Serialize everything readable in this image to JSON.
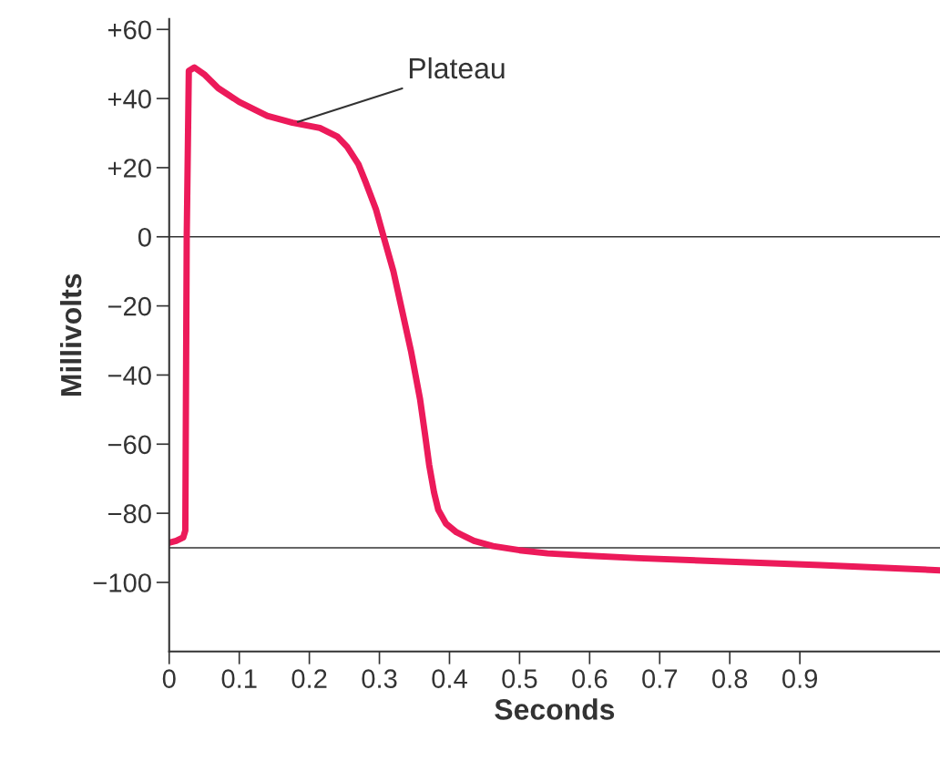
{
  "chart_data": {
    "type": "line",
    "xlabel": "Seconds",
    "ylabel": "Millivolts",
    "series": [
      {
        "color": "#ec1a5a",
        "x": [
          0,
          0.01,
          0.02,
          0.023,
          0.025,
          0.028,
          0.036,
          0.05,
          0.07,
          0.1,
          0.14,
          0.176,
          0.215,
          0.24,
          0.254,
          0.27,
          0.28,
          0.295,
          0.306,
          0.32,
          0.332,
          0.345,
          0.358,
          0.365,
          0.371,
          0.378,
          0.384,
          0.395,
          0.41,
          0.435,
          0.462,
          0.5,
          0.54,
          0.6,
          0.67,
          0.8,
          0.93,
          1.1
        ],
        "values": [
          -88.5,
          -88,
          -87,
          -85,
          0,
          48,
          49,
          47,
          43,
          39,
          35,
          33,
          31.5,
          29,
          26,
          21,
          16,
          8,
          0,
          -10,
          -21,
          -33,
          -47,
          -57,
          -66,
          -74,
          -79,
          -83,
          -85.5,
          -88,
          -89.5,
          -90.7,
          -91.6,
          -92.3,
          -93,
          -94,
          -95,
          -96.5
        ]
      }
    ],
    "annotations": [
      {
        "text": "Plateau",
        "x": 0.18,
        "y": 33
      }
    ],
    "ref_lines": [
      {
        "axis": "y",
        "value": 0,
        "color": "#333333"
      },
      {
        "axis": "y",
        "value": -90,
        "color": "#333333"
      }
    ],
    "xlim": [
      0,
      1.1
    ],
    "ylim": [
      -120,
      63
    ],
    "xticks": [
      0,
      0.1,
      0.2,
      0.3,
      0.4,
      0.5,
      0.6,
      0.7,
      0.8,
      0.9
    ],
    "yticks": [
      {
        "value": 60,
        "label": "+60"
      },
      {
        "value": 40,
        "label": "+40"
      },
      {
        "value": 20,
        "label": "+20"
      },
      0,
      {
        "value": -20,
        "label": "−20"
      },
      {
        "value": -40,
        "label": "−40"
      },
      {
        "value": -60,
        "label": "−60"
      },
      {
        "value": -80,
        "label": "−80"
      },
      {
        "value": -100,
        "label": "−100"
      }
    ],
    "grid": false
  }
}
